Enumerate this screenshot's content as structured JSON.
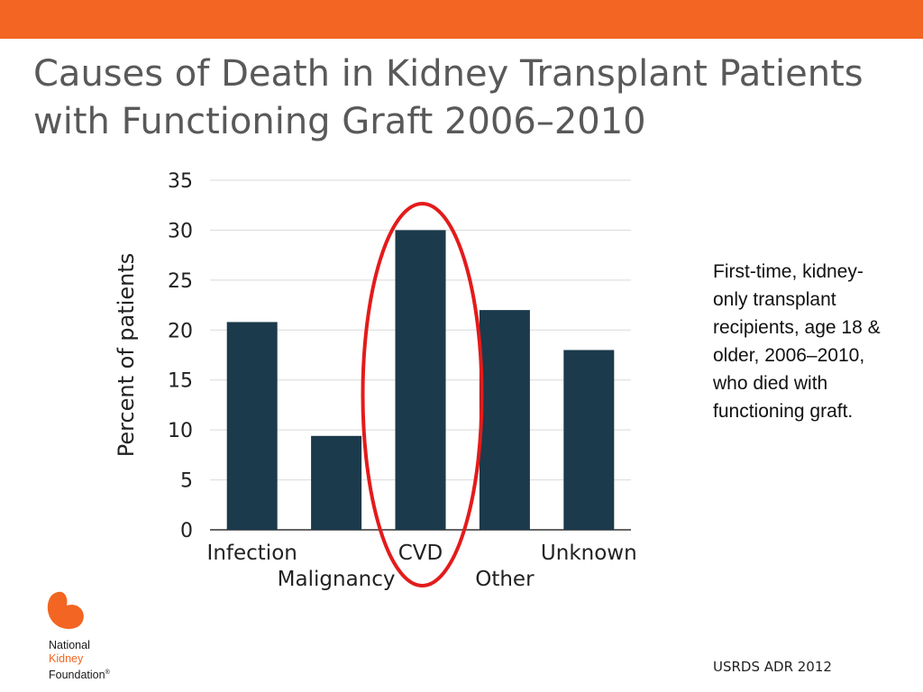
{
  "slide": {
    "title": "Causes of Death in Kidney Transplant Patients with Functioning Graft 2006–2010",
    "side_note": "First-time, kidney-only transplant recipients, age 18 & older, 2006–2010, who died with functioning graft.",
    "source": "USRDS ADR 2012"
  },
  "logo": {
    "line1": "National",
    "line2": "Kidney",
    "line3": "Foundation",
    "mark": "®",
    "icon": "kidney-icon"
  },
  "colors": {
    "accent": "#f26522",
    "title": "#595959",
    "bar": "#1b3a4b",
    "highlight_ring": "#e31b1b",
    "gridline": "#d9d9d9",
    "axis_text": "#222222"
  },
  "chart_data": {
    "type": "bar",
    "categories": [
      "Infection",
      "Malignancy",
      "CVD",
      "Other",
      "Unknown"
    ],
    "values": [
      20.8,
      9.4,
      30,
      22,
      18
    ],
    "xlabel": "",
    "ylabel": "Percent of patients",
    "ylim": [
      0,
      35
    ],
    "yticks": [
      "0",
      "5",
      "10",
      "15",
      "20",
      "25",
      "30",
      "35"
    ],
    "grid": true,
    "highlighted_category": "CVD"
  }
}
